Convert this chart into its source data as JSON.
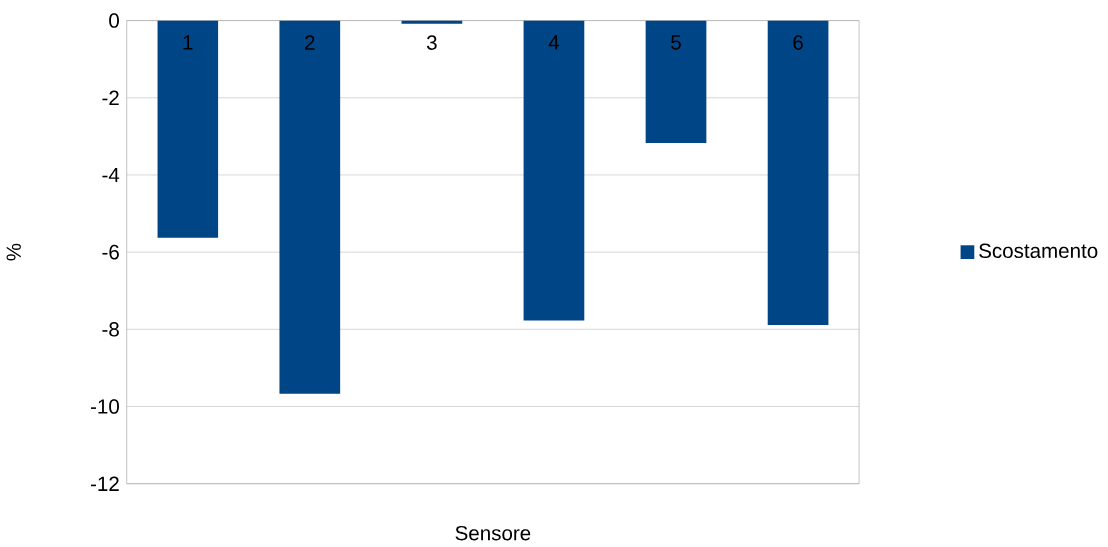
{
  "chart_data": {
    "type": "bar",
    "xlabel": "Sensore",
    "ylabel": "%",
    "categories": [
      "1",
      "2",
      "3",
      "4",
      "5",
      "6"
    ],
    "series": [
      {
        "name": "Scostamento",
        "color": "#004586",
        "values": [
          -5.63,
          -9.67,
          -0.08,
          -7.77,
          -3.17,
          -7.89
        ]
      }
    ],
    "ylim": [
      -12,
      0
    ],
    "yticks": [
      -12,
      -10,
      -8,
      -6,
      -4,
      -2,
      0
    ],
    "grid": "y",
    "legend": "right"
  }
}
